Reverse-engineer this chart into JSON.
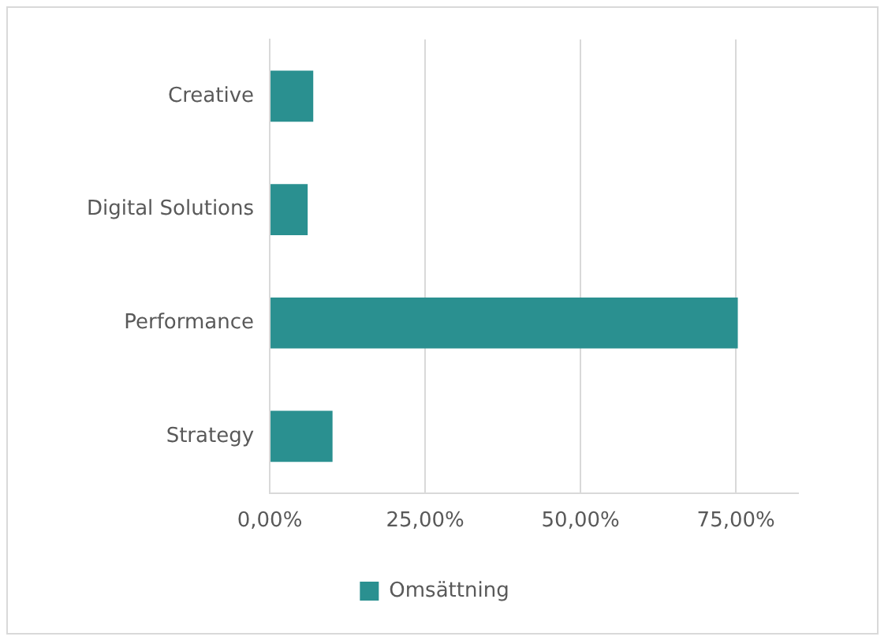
{
  "chart_data": {
    "type": "bar",
    "orientation": "horizontal",
    "categories": [
      "Creative",
      "Digital Solutions",
      "Performance",
      "Strategy"
    ],
    "series": [
      {
        "name": "Omsättning",
        "color": "#2a9090",
        "values": [
          7.0,
          6.1,
          75.3,
          10.1
        ]
      }
    ],
    "xlim": [
      0,
      85
    ],
    "xticks": [
      {
        "value": 0,
        "label": "0,00%"
      },
      {
        "value": 25,
        "label": "25,00%"
      },
      {
        "value": 50,
        "label": "50,00%"
      },
      {
        "value": 75,
        "label": "75,00%"
      }
    ],
    "grid": "x",
    "legend": "bottom"
  }
}
